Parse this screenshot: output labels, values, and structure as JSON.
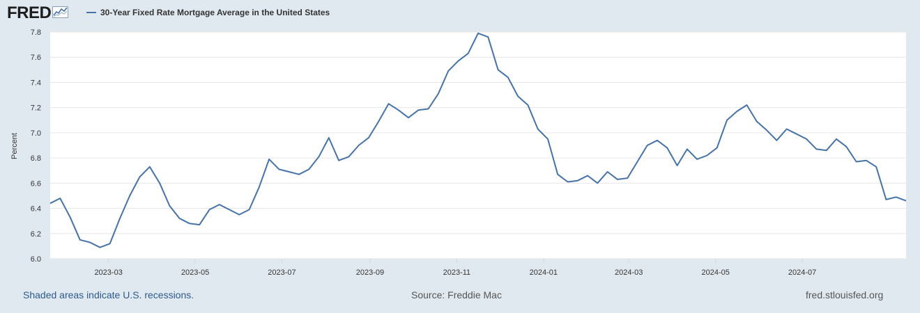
{
  "header": {
    "logo_text": "FRED",
    "legend_label": "30-Year Fixed Rate Mortgage Average in the United States",
    "series_color": "#4572a7"
  },
  "footer": {
    "recessions_note": "Shaded areas indicate U.S. recessions.",
    "source": "Source: Freddie Mac",
    "site": "fred.stlouisfed.org"
  },
  "chart_data": {
    "type": "line",
    "title": "30-Year Fixed Rate Mortgage Average in the United States",
    "xlabel": "",
    "ylabel": "Percent",
    "ylim": [
      6.0,
      7.8
    ],
    "yticks": [
      "6.0",
      "6.2",
      "6.4",
      "6.6",
      "6.8",
      "7.0",
      "7.2",
      "7.4",
      "7.6",
      "7.8"
    ],
    "xticks": [
      "2023-03",
      "2023-05",
      "2023-07",
      "2023-09",
      "2023-11",
      "2024-01",
      "2024-03",
      "2024-05",
      "2024-07"
    ],
    "grid": true,
    "series": [
      {
        "name": "30-Year Fixed Rate Mortgage Average in the United States",
        "values": [
          6.44,
          6.48,
          6.33,
          6.15,
          6.13,
          6.09,
          6.12,
          6.32,
          6.5,
          6.65,
          6.73,
          6.6,
          6.42,
          6.32,
          6.28,
          6.27,
          6.39,
          6.43,
          6.39,
          6.35,
          6.39,
          6.57,
          6.79,
          6.71,
          6.69,
          6.67,
          6.71,
          6.81,
          6.96,
          6.78,
          6.81,
          6.9,
          6.96,
          7.09,
          7.23,
          7.18,
          7.12,
          7.18,
          7.19,
          7.31,
          7.49,
          7.57,
          7.63,
          7.79,
          7.76,
          7.5,
          7.44,
          7.29,
          7.22,
          7.03,
          6.95,
          6.67,
          6.61,
          6.62,
          6.66,
          6.6,
          6.69,
          6.63,
          6.64,
          6.77,
          6.9,
          6.94,
          6.88,
          6.74,
          6.87,
          6.79,
          6.82,
          6.88,
          7.1,
          7.17,
          7.22,
          7.09,
          7.02,
          6.94,
          7.03,
          6.99,
          6.95,
          6.87,
          6.86,
          6.95,
          6.89,
          6.77,
          6.78,
          6.73,
          6.47,
          6.49,
          6.46
        ]
      }
    ]
  }
}
